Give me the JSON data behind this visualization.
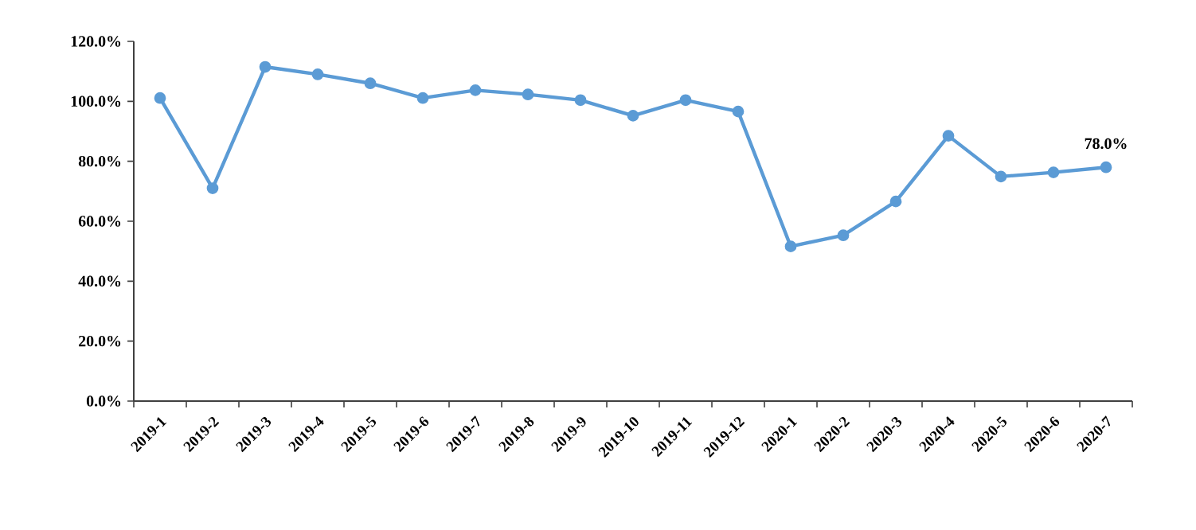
{
  "chart_data": {
    "type": "line",
    "categories": [
      "2019-1",
      "2019-2",
      "2019-3",
      "2019-4",
      "2019-5",
      "2019-6",
      "2019-7",
      "2019-8",
      "2019-9",
      "2019-10",
      "2019-11",
      "2019-12",
      "2020-1",
      "2020-2",
      "2020-3",
      "2020-4",
      "2020-5",
      "2020-6",
      "2020-7"
    ],
    "series": [
      {
        "color": "#5b9bd5",
        "values": [
          101.1,
          71.0,
          111.5,
          109.0,
          106.0,
          101.1,
          103.7,
          102.3,
          100.4,
          95.2,
          100.4,
          96.6,
          51.6,
          55.3,
          66.6,
          88.5,
          74.9,
          76.3,
          78.0
        ],
        "value_labels": [
          null,
          null,
          null,
          null,
          null,
          null,
          null,
          null,
          null,
          null,
          null,
          null,
          null,
          null,
          null,
          null,
          null,
          null,
          "78.0%"
        ]
      }
    ],
    "ylim": [
      0,
      120
    ],
    "yticks": [
      {
        "value": 0,
        "label": "0.0%"
      },
      {
        "value": 20,
        "label": "20.0%"
      },
      {
        "value": 40,
        "label": "40.0%"
      },
      {
        "value": 60,
        "label": "60.0%"
      },
      {
        "value": 80,
        "label": "80.0%"
      },
      {
        "value": 100,
        "label": "100.0%"
      },
      {
        "value": 120,
        "label": "120.0%"
      }
    ],
    "grid": false,
    "marker": "circle",
    "line_style": "solid"
  }
}
